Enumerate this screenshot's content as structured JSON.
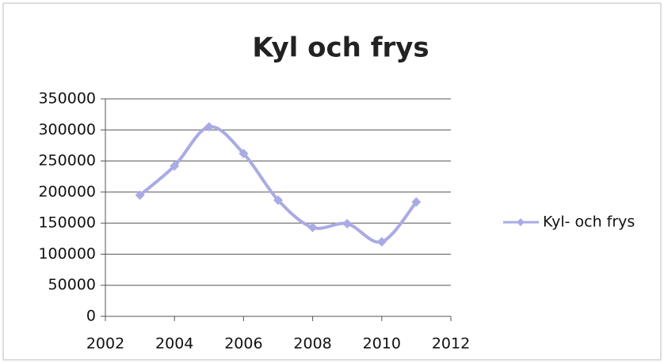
{
  "chart_data": {
    "type": "line",
    "title": "Kyl och frys",
    "x": [
      2003,
      2004,
      2005,
      2006,
      2007,
      2008,
      2009,
      2010,
      2011
    ],
    "series": [
      {
        "name": "Kyl- och frys",
        "color": "#aaaae4",
        "values": [
          195000,
          242000,
          305000,
          262000,
          187000,
          143000,
          149000,
          120000,
          184000
        ]
      }
    ],
    "xlim": [
      2002,
      2012
    ],
    "xticks": [
      2002,
      2004,
      2006,
      2008,
      2010,
      2012
    ],
    "ylim": [
      0,
      350000
    ],
    "yticks": [
      0,
      50000,
      100000,
      150000,
      200000,
      250000,
      300000,
      350000
    ],
    "grid": true,
    "legend": "right"
  }
}
